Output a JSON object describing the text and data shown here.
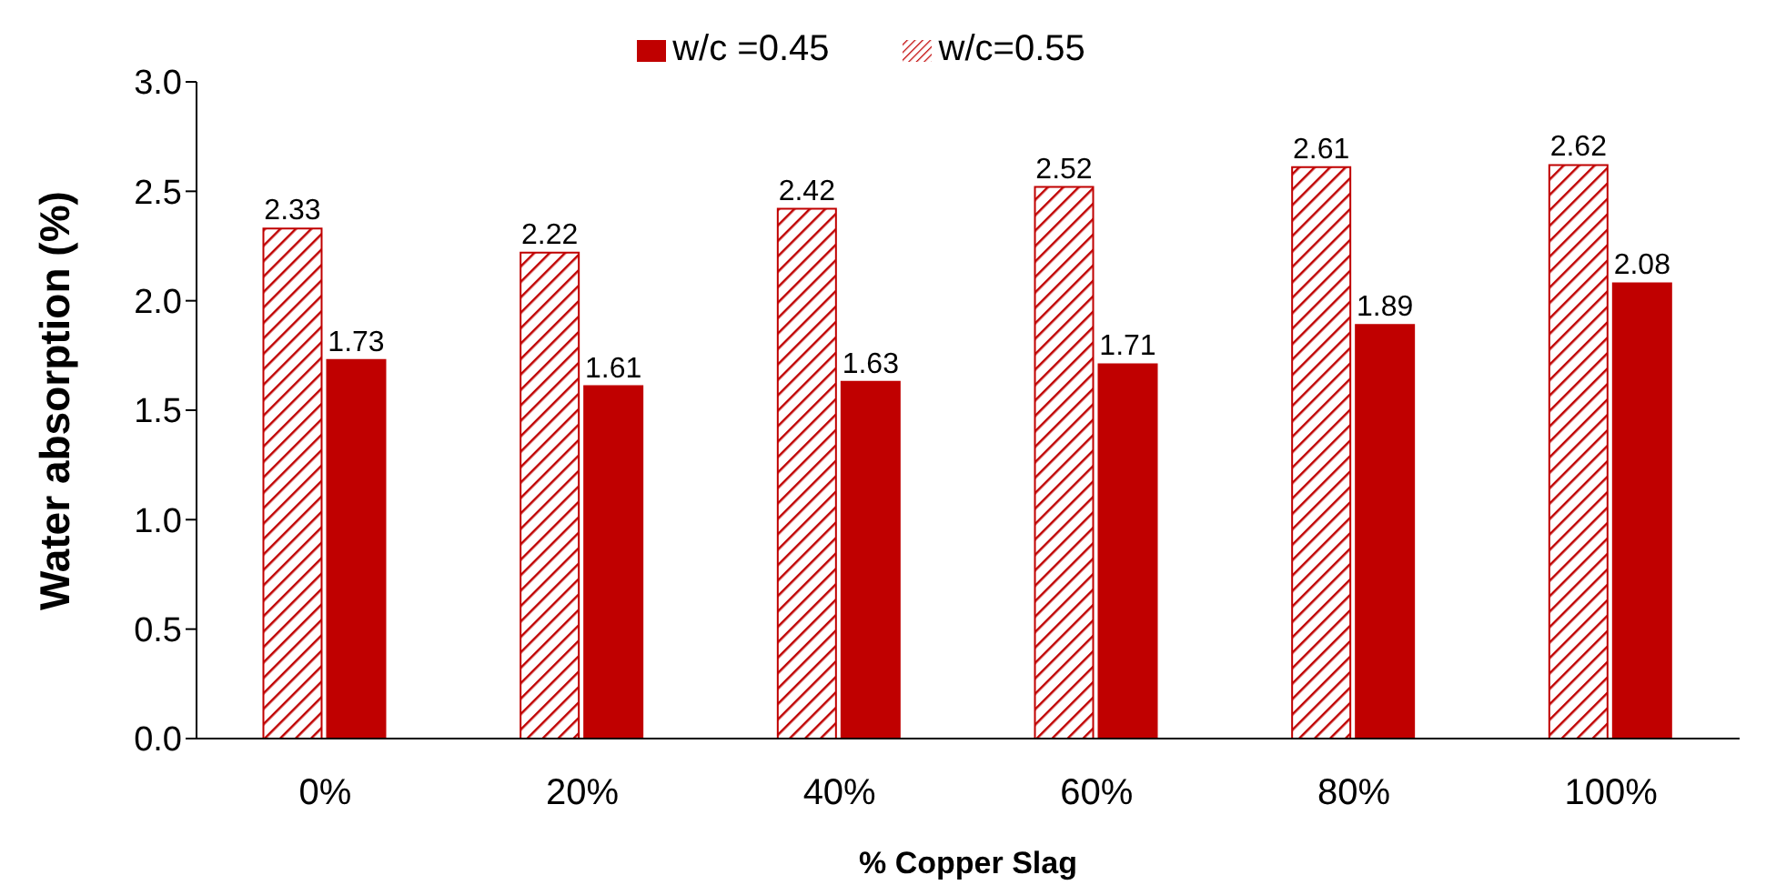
{
  "chart_data": {
    "type": "bar",
    "xlabel": "% Copper Slag",
    "ylabel": "Water absorption (%)",
    "categories": [
      "0%",
      "20%",
      "40%",
      "60%",
      "80%",
      "100%"
    ],
    "series": [
      {
        "name": "w/c=0.55",
        "color": "#c00000",
        "values": [
          2.33,
          2.22,
          2.42,
          2.52,
          2.61,
          2.62
        ]
      },
      {
        "name": "w/c =0.45",
        "color": "#c00000",
        "values": [
          1.73,
          1.61,
          1.63,
          1.71,
          1.89,
          2.08
        ]
      }
    ],
    "ylim": [
      0,
      3
    ],
    "yticks": [
      {
        "value": 0,
        "label": "0.0"
      },
      {
        "value": 0.5,
        "label": "0.5"
      },
      {
        "value": 1,
        "label": "1.0"
      },
      {
        "value": 1.5,
        "label": "1.5"
      },
      {
        "value": 2,
        "label": "2.0"
      },
      {
        "value": 2.5,
        "label": "2.5"
      },
      {
        "value": 3,
        "label": "3.0"
      }
    ],
    "data_labels": true,
    "legend": "top",
    "grid": false
  }
}
